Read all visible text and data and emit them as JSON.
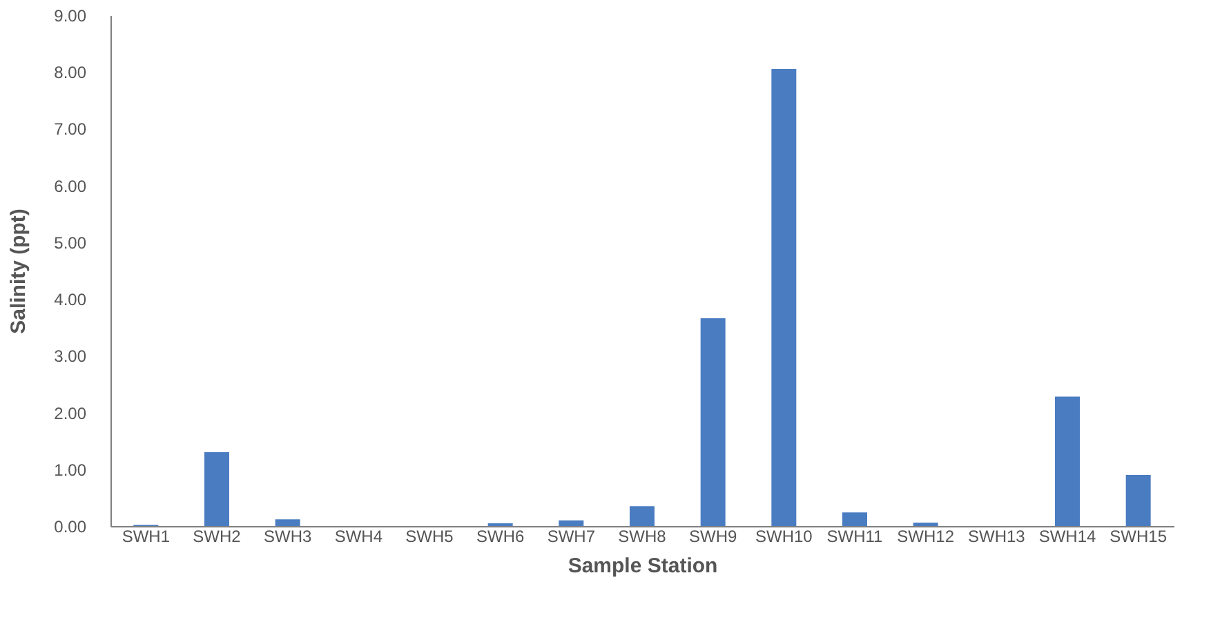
{
  "chart_data": {
    "type": "bar",
    "xlabel": "Sample Station",
    "ylabel": "Salinity (ppt)",
    "categories": [
      "SWH1",
      "SWH2",
      "SWH3",
      "SWH4",
      "SWH5",
      "SWH6",
      "SWH7",
      "SWH8",
      "SWH9",
      "SWH10",
      "SWH11",
      "SWH12",
      "SWH13",
      "SWH14",
      "SWH15"
    ],
    "values": [
      0.02,
      1.3,
      0.12,
      0,
      0,
      0.05,
      0.1,
      0.35,
      3.66,
      8.05,
      0.24,
      0.06,
      0,
      2.28,
      0.9
    ],
    "color": "#4a7cc1",
    "ylim": [
      0,
      9
    ],
    "yticks": [
      {
        "value": 0,
        "label": "0.00"
      },
      {
        "value": 1,
        "label": "1.00"
      },
      {
        "value": 2,
        "label": "2.00"
      },
      {
        "value": 3,
        "label": "3.00"
      },
      {
        "value": 4,
        "label": "4.00"
      },
      {
        "value": 5,
        "label": "5.00"
      },
      {
        "value": 6,
        "label": "6.00"
      },
      {
        "value": 7,
        "label": "7.00"
      },
      {
        "value": 8,
        "label": "8.00"
      },
      {
        "value": 9,
        "label": "9.00"
      }
    ],
    "grid": false
  }
}
